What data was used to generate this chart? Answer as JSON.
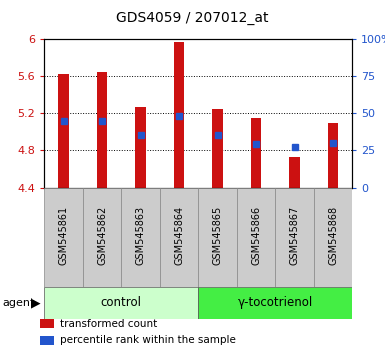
{
  "title": "GDS4059 / 207012_at",
  "samples": [
    "GSM545861",
    "GSM545862",
    "GSM545863",
    "GSM545864",
    "GSM545865",
    "GSM545866",
    "GSM545867",
    "GSM545868"
  ],
  "bar_bottom": 4.4,
  "bar_tops": [
    5.62,
    5.64,
    5.27,
    5.97,
    5.25,
    5.15,
    4.73,
    5.1
  ],
  "blue_values": [
    5.12,
    5.12,
    4.97,
    5.175,
    4.97,
    4.87,
    4.835,
    4.875
  ],
  "ylim": [
    4.4,
    6.0
  ],
  "yticks": [
    4.4,
    4.8,
    5.2,
    5.6,
    6.0
  ],
  "ytick_labels": [
    "4.4",
    "4.8",
    "5.2",
    "5.6",
    "6"
  ],
  "right_yticks": [
    0,
    25,
    50,
    75,
    100
  ],
  "right_ytick_labels": [
    "0",
    "25",
    "50",
    "75",
    "100%"
  ],
  "bar_color": "#cc1111",
  "blue_color": "#2255cc",
  "bar_width": 0.28,
  "groups": [
    {
      "label": "control",
      "indices": [
        0,
        1,
        2,
        3
      ],
      "color": "#ccffcc"
    },
    {
      "label": "γ-tocotrienol",
      "indices": [
        4,
        5,
        6,
        7
      ],
      "color": "#44ee44"
    }
  ],
  "agent_label": "agent",
  "tick_label_color_left": "#cc1111",
  "tick_label_color_right": "#2255cc",
  "bg_sample_label": "#cccccc",
  "legend_items": [
    {
      "color": "#cc1111",
      "label": "transformed count"
    },
    {
      "color": "#2255cc",
      "label": "percentile rank within the sample"
    }
  ]
}
